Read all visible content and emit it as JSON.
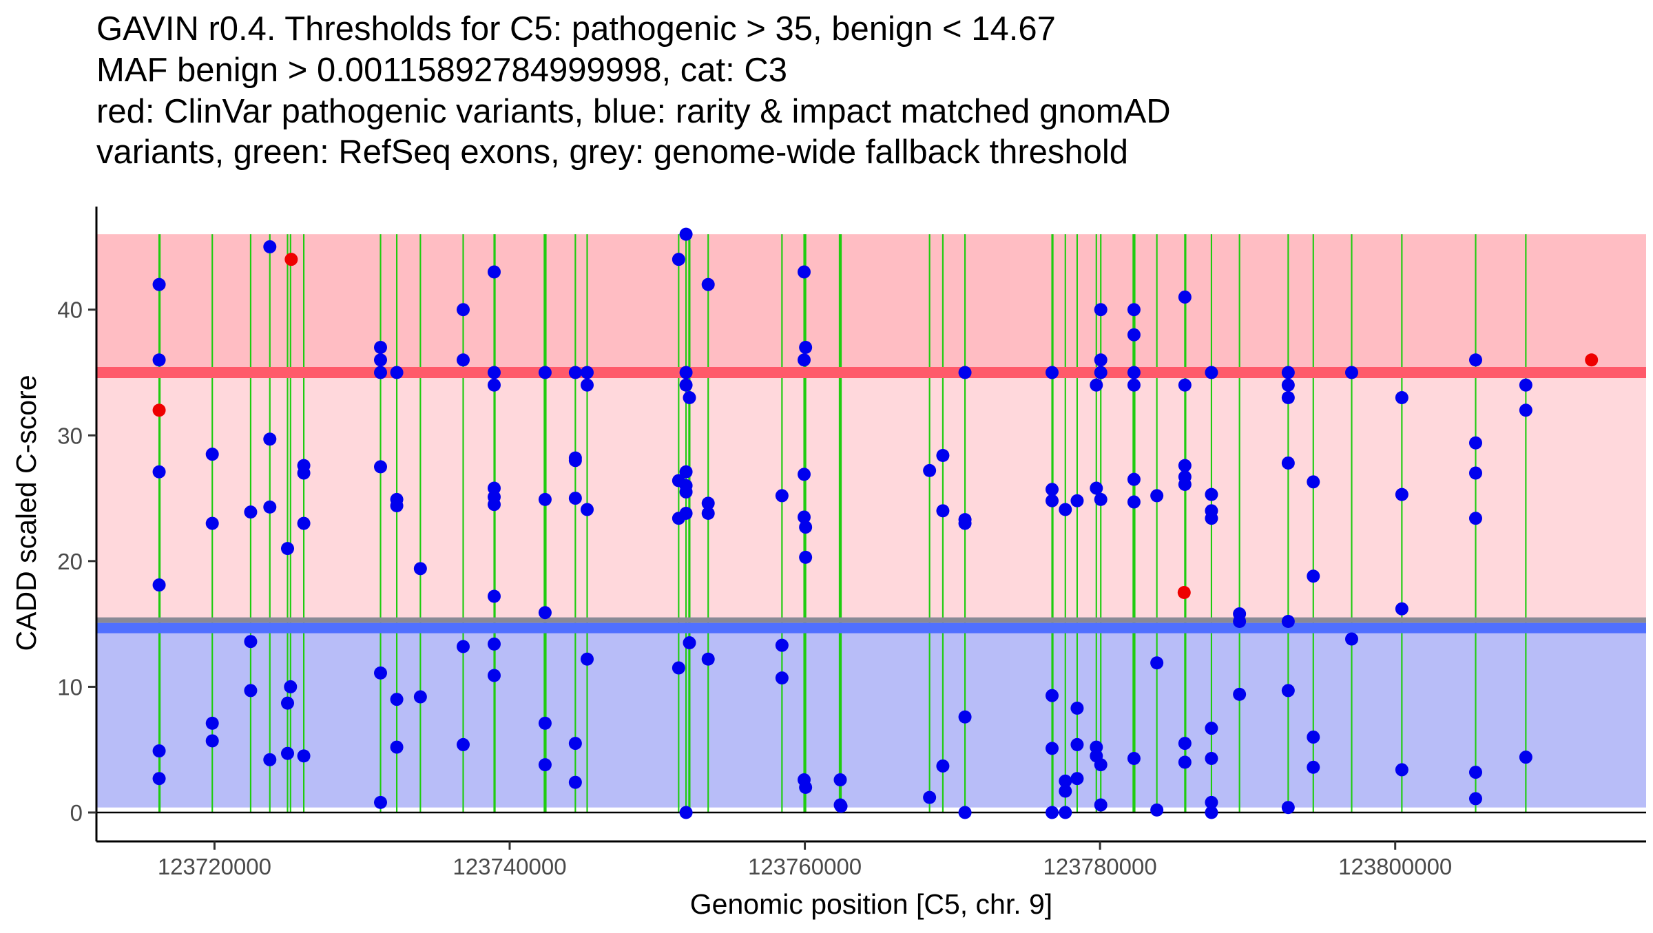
{
  "chart_data": {
    "type": "scatter",
    "title_lines": [
      "GAVIN r0.4. Thresholds for C5: pathogenic > 35, benign < 14.67",
      "MAF benign > 0.00115892784999998, cat: C3",
      "red: ClinVar pathogenic variants, blue: rarity & impact matched gnomAD",
      "variants, green: RefSeq exons, grey: genome-wide fallback threshold"
    ],
    "xlabel": "Genomic position [C5, chr. 9]",
    "ylabel": "CADD scaled C-score",
    "xlim": [
      123712000,
      123817000
    ],
    "ylim": [
      -2.3,
      48.2
    ],
    "x_ticks": [
      {
        "value": 123720000,
        "label": "123720000"
      },
      {
        "value": 123740000,
        "label": "123740000"
      },
      {
        "value": 123760000,
        "label": "123760000"
      },
      {
        "value": 123780000,
        "label": "123780000"
      },
      {
        "value": 123800000,
        "label": "123800000"
      }
    ],
    "y_ticks": [
      {
        "value": 0,
        "label": "0"
      },
      {
        "value": 10,
        "label": "10"
      },
      {
        "value": 20,
        "label": "20"
      },
      {
        "value": 30,
        "label": "30"
      },
      {
        "value": 40,
        "label": "40"
      }
    ],
    "thresholds": {
      "pathogenic": 35,
      "benign": 14.67,
      "fallback": 15.3,
      "band_top": 46,
      "band_bottom": 0.4
    },
    "colors": {
      "pathogenic_band": "#ffbdc3",
      "middle_band": "#ffd8dc",
      "benign_band": "#b8bdf8",
      "pathogenic_line": "#ff5a6a",
      "benign_line": "#5070ff",
      "fallback_line": "#8a8a96",
      "exon": "#1fcc10",
      "gnomad": "#0000ee",
      "clinvar": "#ee0000",
      "axis": "#000000",
      "text": "#000000",
      "tick_label": "#4a4a4a"
    },
    "exons": [
      {
        "start": 123716200,
        "end": 123716350
      },
      {
        "start": 123719800,
        "end": 123719900
      },
      {
        "start": 123722400,
        "end": 123722500
      },
      {
        "start": 123723700,
        "end": 123723800
      },
      {
        "start": 123724900,
        "end": 123725000
      },
      {
        "start": 123725100,
        "end": 123725200
      },
      {
        "start": 123726000,
        "end": 123726100
      },
      {
        "start": 123731200,
        "end": 123731300
      },
      {
        "start": 123732300,
        "end": 123732400
      },
      {
        "start": 123733900,
        "end": 123734000
      },
      {
        "start": 123736800,
        "end": 123736900
      },
      {
        "start": 123738900,
        "end": 123739050
      },
      {
        "start": 123742300,
        "end": 123742500
      },
      {
        "start": 123744400,
        "end": 123744500
      },
      {
        "start": 123745200,
        "end": 123745300
      },
      {
        "start": 123751400,
        "end": 123751500
      },
      {
        "start": 123751900,
        "end": 123752000
      },
      {
        "start": 123752100,
        "end": 123752250
      },
      {
        "start": 123753400,
        "end": 123753500
      },
      {
        "start": 123758400,
        "end": 123758500
      },
      {
        "start": 123759900,
        "end": 123760100
      },
      {
        "start": 123762300,
        "end": 123762500
      },
      {
        "start": 123768400,
        "end": 123768500
      },
      {
        "start": 123769300,
        "end": 123769400
      },
      {
        "start": 123770800,
        "end": 123770900
      },
      {
        "start": 123776700,
        "end": 123776850
      },
      {
        "start": 123777600,
        "end": 123777700
      },
      {
        "start": 123778400,
        "end": 123778500
      },
      {
        "start": 123779700,
        "end": 123779800
      },
      {
        "start": 123780000,
        "end": 123780100
      },
      {
        "start": 123782200,
        "end": 123782400
      },
      {
        "start": 123783800,
        "end": 123783900
      },
      {
        "start": 123785700,
        "end": 123785850
      },
      {
        "start": 123787500,
        "end": 123787600
      },
      {
        "start": 123789400,
        "end": 123789500
      },
      {
        "start": 123792700,
        "end": 123792800
      },
      {
        "start": 123794400,
        "end": 123794500
      },
      {
        "start": 123797000,
        "end": 123797100
      },
      {
        "start": 123800400,
        "end": 123800500
      },
      {
        "start": 123805400,
        "end": 123805500
      },
      {
        "start": 123808800,
        "end": 123808900
      }
    ],
    "series": [
      {
        "name": "gnomAD (rarity & impact matched)",
        "color": "#0000ee",
        "points": [
          [
            123716250,
            42
          ],
          [
            123716250,
            36
          ],
          [
            123716250,
            27.1
          ],
          [
            123716250,
            18.1
          ],
          [
            123716250,
            4.9
          ],
          [
            123716250,
            2.7
          ],
          [
            123719850,
            28.5
          ],
          [
            123719850,
            23
          ],
          [
            123719850,
            7.1
          ],
          [
            123719850,
            5.7
          ],
          [
            123722450,
            23.9
          ],
          [
            123722450,
            13.6
          ],
          [
            123722450,
            9.7
          ],
          [
            123723750,
            45
          ],
          [
            123723750,
            29.7
          ],
          [
            123723750,
            24.3
          ],
          [
            123723750,
            4.2
          ],
          [
            123724950,
            21
          ],
          [
            123724950,
            8.7
          ],
          [
            123724950,
            4.7
          ],
          [
            123725150,
            10
          ],
          [
            123726050,
            27.6
          ],
          [
            123726050,
            27
          ],
          [
            123726050,
            23
          ],
          [
            123726050,
            4.5
          ],
          [
            123731250,
            37
          ],
          [
            123731250,
            36
          ],
          [
            123731250,
            35
          ],
          [
            123731250,
            27.5
          ],
          [
            123731250,
            11.1
          ],
          [
            123731250,
            0.8
          ],
          [
            123732350,
            35
          ],
          [
            123732350,
            24.9
          ],
          [
            123732350,
            24.4
          ],
          [
            123732350,
            9
          ],
          [
            123732350,
            5.2
          ],
          [
            123733950,
            19.4
          ],
          [
            123733950,
            9.2
          ],
          [
            123736850,
            40
          ],
          [
            123736850,
            36
          ],
          [
            123736850,
            13.2
          ],
          [
            123736850,
            5.4
          ],
          [
            123738950,
            43
          ],
          [
            123738950,
            35
          ],
          [
            123738950,
            34
          ],
          [
            123738950,
            25.8
          ],
          [
            123738950,
            25.1
          ],
          [
            123738950,
            24.5
          ],
          [
            123738950,
            17.2
          ],
          [
            123738950,
            13.4
          ],
          [
            123738950,
            10.9
          ],
          [
            123742400,
            35
          ],
          [
            123742400,
            24.9
          ],
          [
            123742400,
            15.9
          ],
          [
            123742400,
            7.1
          ],
          [
            123742400,
            3.8
          ],
          [
            123744450,
            35
          ],
          [
            123744450,
            28.2
          ],
          [
            123744450,
            28
          ],
          [
            123744450,
            25
          ],
          [
            123744450,
            5.5
          ],
          [
            123744450,
            2.4
          ],
          [
            123745250,
            35
          ],
          [
            123745250,
            34
          ],
          [
            123745250,
            24.1
          ],
          [
            123745250,
            12.2
          ],
          [
            123751450,
            44
          ],
          [
            123751450,
            26.4
          ],
          [
            123751450,
            23.4
          ],
          [
            123751450,
            11.5
          ],
          [
            123751950,
            46
          ],
          [
            123751950,
            35
          ],
          [
            123751950,
            34
          ],
          [
            123751950,
            27.1
          ],
          [
            123751950,
            26
          ],
          [
            123751950,
            25.5
          ],
          [
            123751950,
            23.8
          ],
          [
            123751950,
            0
          ],
          [
            123752180,
            33
          ],
          [
            123752180,
            13.5
          ],
          [
            123753450,
            42
          ],
          [
            123753450,
            24.6
          ],
          [
            123753450,
            23.8
          ],
          [
            123753450,
            12.2
          ],
          [
            123758450,
            25.2
          ],
          [
            123758450,
            13.3
          ],
          [
            123758450,
            10.7
          ],
          [
            123759950,
            43
          ],
          [
            123759950,
            36
          ],
          [
            123759950,
            26.9
          ],
          [
            123759950,
            23.5
          ],
          [
            123759950,
            2.6
          ],
          [
            123760050,
            37
          ],
          [
            123760050,
            22.7
          ],
          [
            123760050,
            20.3
          ],
          [
            123760050,
            2
          ],
          [
            123762400,
            2.6
          ],
          [
            123762400,
            0.6
          ],
          [
            123762450,
            0.5
          ],
          [
            123768450,
            27.2
          ],
          [
            123768450,
            1.2
          ],
          [
            123769350,
            28.4
          ],
          [
            123769350,
            24
          ],
          [
            123769350,
            3.7
          ],
          [
            123770850,
            35
          ],
          [
            123770850,
            23.3
          ],
          [
            123770850,
            23
          ],
          [
            123770850,
            7.6
          ],
          [
            123770850,
            0
          ],
          [
            123776750,
            35
          ],
          [
            123776750,
            25.7
          ],
          [
            123776750,
            24.8
          ],
          [
            123776750,
            9.3
          ],
          [
            123776750,
            5.1
          ],
          [
            123776750,
            0
          ],
          [
            123777650,
            24.1
          ],
          [
            123777650,
            2.5
          ],
          [
            123777650,
            1.7
          ],
          [
            123777650,
            0
          ],
          [
            123778450,
            24.8
          ],
          [
            123778450,
            8.3
          ],
          [
            123778450,
            5.4
          ],
          [
            123778450,
            2.7
          ],
          [
            123779750,
            34
          ],
          [
            123779750,
            25.8
          ],
          [
            123779750,
            5.2
          ],
          [
            123779750,
            4.5
          ],
          [
            123780050,
            40
          ],
          [
            123780050,
            36
          ],
          [
            123780050,
            35
          ],
          [
            123780050,
            24.9
          ],
          [
            123780050,
            3.8
          ],
          [
            123780050,
            0.6
          ],
          [
            123782300,
            40
          ],
          [
            123782300,
            38
          ],
          [
            123782300,
            35
          ],
          [
            123782300,
            34
          ],
          [
            123782300,
            26.5
          ],
          [
            123782300,
            24.7
          ],
          [
            123782300,
            4.3
          ],
          [
            123783850,
            25.2
          ],
          [
            123783850,
            11.9
          ],
          [
            123783850,
            0.2
          ],
          [
            123785750,
            41
          ],
          [
            123785750,
            34
          ],
          [
            123785750,
            27.6
          ],
          [
            123785750,
            26.7
          ],
          [
            123785750,
            26.1
          ],
          [
            123785750,
            5.5
          ],
          [
            123785750,
            4
          ],
          [
            123787550,
            35
          ],
          [
            123787550,
            25.3
          ],
          [
            123787550,
            24
          ],
          [
            123787550,
            23.4
          ],
          [
            123787550,
            6.7
          ],
          [
            123787550,
            4.3
          ],
          [
            123787550,
            0.8
          ],
          [
            123787550,
            0
          ],
          [
            123789450,
            15.8
          ],
          [
            123789450,
            15.2
          ],
          [
            123789450,
            9.4
          ],
          [
            123792750,
            35
          ],
          [
            123792750,
            34
          ],
          [
            123792750,
            33
          ],
          [
            123792750,
            27.8
          ],
          [
            123792750,
            15.2
          ],
          [
            123792750,
            9.7
          ],
          [
            123792750,
            0.4
          ],
          [
            123794450,
            26.3
          ],
          [
            123794450,
            18.8
          ],
          [
            123794450,
            6
          ],
          [
            123794450,
            3.6
          ],
          [
            123797050,
            35
          ],
          [
            123797050,
            13.8
          ],
          [
            123800450,
            33
          ],
          [
            123800450,
            25.3
          ],
          [
            123800450,
            16.2
          ],
          [
            123800450,
            3.4
          ],
          [
            123805450,
            36
          ],
          [
            123805450,
            29.4
          ],
          [
            123805450,
            27
          ],
          [
            123805450,
            23.4
          ],
          [
            123805450,
            3.2
          ],
          [
            123805450,
            1.1
          ],
          [
            123808850,
            34
          ],
          [
            123808850,
            32
          ],
          [
            123808850,
            4.4
          ]
        ]
      },
      {
        "name": "ClinVar pathogenic",
        "color": "#ee0000",
        "points": [
          [
            123716250,
            32
          ],
          [
            123725200,
            44
          ],
          [
            123785700,
            17.5
          ],
          [
            123813300,
            36
          ]
        ]
      }
    ]
  }
}
